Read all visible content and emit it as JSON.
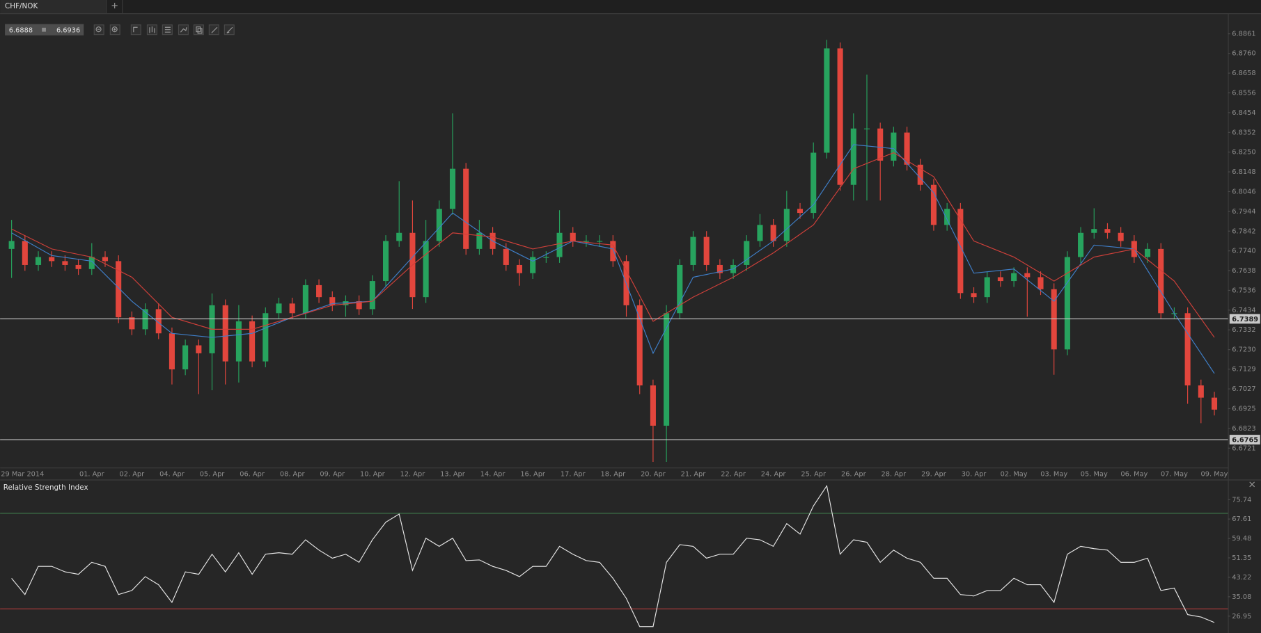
{
  "tab": {
    "title": "CHF/NOK"
  },
  "toolbar": {
    "bid": 6.6888,
    "ask": 6.6936
  },
  "chart_data": [
    {
      "type": "candlestick",
      "categories": [
        "29 Mar 2014",
        null,
        null,
        null,
        null,
        null,
        "01. Apr",
        null,
        null,
        "02. Apr",
        null,
        null,
        "04. Apr",
        null,
        null,
        "05. Apr",
        null,
        null,
        "06. Apr",
        null,
        null,
        "08. Apr",
        null,
        null,
        "09. Apr",
        null,
        null,
        "10. Apr",
        null,
        null,
        "12. Apr",
        null,
        null,
        "13. Apr",
        null,
        null,
        "14. Apr",
        null,
        null,
        "16. Apr",
        null,
        null,
        "17. Apr",
        null,
        null,
        "18. Apr",
        null,
        null,
        "20. Apr",
        null,
        null,
        "21. Apr",
        null,
        null,
        "22. Apr",
        null,
        null,
        "24. Apr",
        null,
        null,
        "25. Apr",
        null,
        null,
        "26. Apr",
        null,
        null,
        "28. Apr",
        null,
        null,
        "29. Apr",
        null,
        null,
        "30. Apr",
        null,
        null,
        "02. May",
        null,
        null,
        "03. May",
        null,
        null,
        "05. May",
        null,
        null,
        "06. May",
        null,
        null,
        "07. May",
        null,
        null,
        "09. May"
      ],
      "open": [
        6.775,
        6.7791,
        6.7667,
        6.7708,
        6.7687,
        6.7667,
        6.7646,
        6.7708,
        6.7687,
        6.7397,
        6.7335,
        6.7439,
        6.7314,
        6.7128,
        6.7252,
        6.7211,
        6.7459,
        6.7169,
        6.7376,
        6.7169,
        6.7418,
        6.7468,
        6.7418,
        6.7563,
        6.7501,
        6.7459,
        6.748,
        6.7439,
        6.7584,
        6.7791,
        6.7833,
        6.7501,
        6.7791,
        6.7957,
        6.8164,
        6.775,
        6.7833,
        6.775,
        6.7667,
        6.7625,
        6.7708,
        6.7708,
        6.7833,
        6.7791,
        6.7791,
        6.7791,
        6.7687,
        6.7459,
        6.7045,
        6.6837,
        6.7418,
        6.7667,
        6.7812,
        6.7667,
        6.7625,
        6.7667,
        6.7791,
        6.7874,
        6.7791,
        6.7957,
        6.7936,
        6.8247,
        6.8786,
        6.8081,
        6.8372,
        6.8372,
        6.8206,
        6.8351,
        6.8185,
        6.8081,
        6.7874,
        6.7957,
        6.7522,
        6.7501,
        6.7604,
        6.7584,
        6.7625,
        6.7604,
        6.7542,
        6.7231,
        6.7708,
        6.7833,
        6.7853,
        6.7833,
        6.7791,
        6.7708,
        6.775,
        6.7418,
        6.7418,
        6.7045,
        6.6982
      ],
      "high": [
        6.79,
        6.7821,
        6.7738,
        6.7738,
        6.7717,
        6.7697,
        6.778,
        6.7738,
        6.7717,
        6.7427,
        6.7469,
        6.7469,
        6.7344,
        6.7282,
        6.7282,
        6.752,
        6.7489,
        6.746,
        6.7406,
        6.7448,
        6.7498,
        6.7498,
        6.7593,
        6.7593,
        6.7531,
        6.751,
        6.751,
        6.7614,
        6.7821,
        6.81,
        6.8,
        6.79,
        6.8,
        6.845,
        6.8194,
        6.79,
        6.7863,
        6.778,
        6.7697,
        6.7738,
        6.7738,
        6.795,
        6.7863,
        6.7821,
        6.7821,
        6.7821,
        6.7717,
        6.7489,
        6.7075,
        6.746,
        6.7697,
        6.7842,
        6.7842,
        6.7697,
        6.7697,
        6.7821,
        6.793,
        6.7904,
        6.805,
        6.7987,
        6.83,
        6.883,
        6.8816,
        6.845,
        6.865,
        6.8402,
        6.8381,
        6.8381,
        6.8215,
        6.8111,
        6.7987,
        6.7987,
        6.7552,
        6.7634,
        6.7634,
        6.7655,
        6.7655,
        6.7634,
        6.7572,
        6.7738,
        6.7863,
        6.796,
        6.7883,
        6.7863,
        6.7821,
        6.778,
        6.778,
        6.7448,
        6.7448,
        6.7075,
        6.7012
      ],
      "low": [
        6.76,
        6.7637,
        6.7637,
        6.7657,
        6.7637,
        6.7616,
        6.7616,
        6.7657,
        6.7367,
        6.7305,
        6.7305,
        6.7284,
        6.705,
        6.7098,
        6.7,
        6.702,
        6.705,
        6.706,
        6.7139,
        6.7139,
        6.7388,
        6.7388,
        6.7388,
        6.7471,
        6.7429,
        6.74,
        6.7409,
        6.7409,
        6.7554,
        6.7761,
        6.744,
        6.7471,
        6.7761,
        6.7927,
        6.772,
        6.772,
        6.772,
        6.7637,
        6.756,
        6.7595,
        6.7678,
        6.7678,
        6.7761,
        6.7761,
        6.7761,
        6.7657,
        6.74,
        6.7,
        6.665,
        6.665,
        6.7388,
        6.7637,
        6.7637,
        6.7595,
        6.7595,
        6.7637,
        6.7761,
        6.7761,
        6.7761,
        6.7906,
        6.7906,
        6.8217,
        6.8051,
        6.8,
        6.8,
        6.8,
        6.8176,
        6.8155,
        6.8051,
        6.7844,
        6.7844,
        6.7492,
        6.7471,
        6.7471,
        6.7554,
        6.7554,
        6.74,
        6.7512,
        6.71,
        6.7201,
        6.7678,
        6.7803,
        6.7803,
        6.7761,
        6.7678,
        6.7678,
        6.7388,
        6.7388,
        6.695,
        6.685,
        6.689
      ],
      "close": [
        6.7791,
        6.7667,
        6.7708,
        6.7687,
        6.7667,
        6.7646,
        6.7708,
        6.7687,
        6.7397,
        6.7335,
        6.7439,
        6.7314,
        6.7128,
        6.7252,
        6.7211,
        6.7459,
        6.7169,
        6.7376,
        6.7169,
        6.7418,
        6.7468,
        6.7418,
        6.7563,
        6.7501,
        6.7459,
        6.748,
        6.7439,
        6.7584,
        6.7791,
        6.7833,
        6.7501,
        6.7791,
        6.7957,
        6.8164,
        6.775,
        6.7833,
        6.775,
        6.7667,
        6.7625,
        6.7708,
        6.7708,
        6.7833,
        6.7791,
        6.7791,
        6.7791,
        6.7687,
        6.7459,
        6.7045,
        6.6837,
        6.7418,
        6.7667,
        6.7812,
        6.7667,
        6.7625,
        6.7667,
        6.7791,
        6.7874,
        6.7791,
        6.7957,
        6.7936,
        6.8247,
        6.8786,
        6.8081,
        6.8372,
        6.8372,
        6.8206,
        6.8351,
        6.8185,
        6.8081,
        6.7874,
        6.7957,
        6.7522,
        6.7501,
        6.7604,
        6.7584,
        6.7625,
        6.7604,
        6.7542,
        6.7231,
        6.7708,
        6.7833,
        6.7853,
        6.7833,
        6.7791,
        6.7708,
        6.775,
        6.7418,
        6.7418,
        6.7045,
        6.6982,
        6.692
      ],
      "up_color": "#27a35e",
      "down_color": "#e2463d",
      "lines": [
        {
          "color": "#3f7fc9",
          "x": [
            0,
            3,
            6,
            9,
            12,
            15,
            18,
            21,
            24,
            27,
            30,
            33,
            36,
            39,
            42,
            45,
            48,
            51,
            54,
            57,
            60,
            63,
            66,
            69,
            72,
            75,
            78,
            81,
            84,
            87,
            90
          ],
          "values": [
            6.7833,
            6.7716,
            6.7687,
            6.748,
            6.7314,
            6.7293,
            6.7314,
            6.7397,
            6.7468,
            6.748,
            6.7708,
            6.7936,
            6.7791,
            6.7687,
            6.7791,
            6.775,
            6.7211,
            6.7604,
            6.7646,
            6.7791,
            6.7978,
            6.8289,
            6.8268,
            6.804,
            6.7625,
            6.7646,
            6.748,
            6.777,
            6.775,
            6.7418,
            6.7107
          ]
        },
        {
          "color": "#d0403a",
          "x": [
            0,
            3,
            6,
            9,
            12,
            15,
            18,
            21,
            24,
            27,
            30,
            33,
            36,
            39,
            42,
            45,
            48,
            51,
            54,
            57,
            60,
            63,
            66,
            69,
            72,
            75,
            78,
            81,
            84,
            87,
            90
          ],
          "values": [
            6.7853,
            6.775,
            6.7708,
            6.7604,
            6.7397,
            6.7335,
            6.7335,
            6.7397,
            6.7459,
            6.748,
            6.7667,
            6.7833,
            6.7812,
            6.775,
            6.7791,
            6.777,
            6.7376,
            6.7501,
            6.7604,
            6.7729,
            6.7874,
            6.8164,
            6.8247,
            6.8123,
            6.7791,
            6.7708,
            6.7584,
            6.7708,
            6.775,
            6.7584,
            6.7293
          ]
        }
      ],
      "price_lines": [
        {
          "value": 6.7389,
          "color": "#c8c8c8"
        },
        {
          "value": 6.6765,
          "color": "#c8c8c8"
        }
      ],
      "ylim": [
        6.6621,
        6.8961
      ],
      "yticks": [
        6.8861,
        {
          "value": 6.876,
          "label": "6.8760"
        },
        6.8658,
        6.8556,
        6.8454,
        6.8352,
        {
          "value": 6.825,
          "label": "6.8250"
        },
        6.8148,
        6.8046,
        6.7944,
        6.7842,
        {
          "value": 6.774,
          "label": "6.7740"
        },
        6.7638,
        6.7536,
        6.7434,
        6.7332,
        {
          "value": 6.723,
          "label": "6.7230"
        },
        6.7129,
        6.7027,
        6.6925,
        6.6823,
        6.6721
      ],
      "grid": false
    },
    {
      "type": "line",
      "title": "Relative Strength Index",
      "color": "#e6e6e6",
      "values": [
        42.8,
        36.0,
        47.8,
        47.8,
        45.5,
        44.5,
        49.5,
        47.8,
        36.0,
        37.7,
        43.5,
        40.1,
        32.7,
        45.5,
        44.5,
        52.9,
        45.5,
        53.5,
        44.5,
        52.9,
        53.5,
        52.9,
        58.9,
        54.6,
        51.2,
        52.9,
        49.5,
        58.9,
        66.3,
        69.7,
        46.1,
        59.6,
        56.2,
        59.6,
        50.2,
        50.5,
        47.8,
        46.1,
        43.5,
        47.8,
        47.8,
        56.2,
        52.9,
        50.2,
        49.5,
        42.8,
        34.4,
        22.6,
        22.6,
        49.5,
        56.9,
        56.2,
        51.2,
        52.9,
        52.9,
        59.6,
        58.9,
        56.2,
        65.7,
        61.3,
        73.1,
        81.5,
        52.9,
        58.9,
        57.9,
        49.5,
        54.6,
        51.2,
        49.5,
        42.8,
        42.8,
        36.0,
        35.4,
        37.7,
        37.7,
        42.8,
        40.1,
        40.1,
        32.7,
        52.9,
        56.2,
        55.2,
        54.6,
        49.5,
        49.5,
        51.2,
        37.7,
        38.7,
        27.6,
        26.6,
        24.3
      ],
      "levels": [
        {
          "value": 70,
          "color": "#3f7a4c"
        },
        {
          "value": 30,
          "color": "#b23b3b"
        }
      ],
      "ylim": [
        19.9,
        83.8
      ],
      "yticks": [
        75.74,
        67.61,
        59.48,
        51.35,
        43.22,
        35.08,
        26.95
      ],
      "grid": false
    }
  ]
}
